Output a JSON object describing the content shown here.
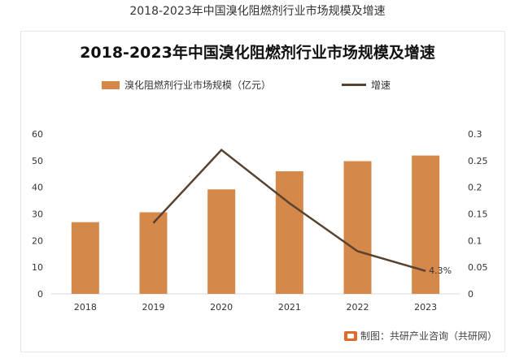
{
  "page_caption": "2018-2023年中国溴化阻燃剂行业市场规模及增速",
  "source_text": "制图：共研产业咨询（共研网）",
  "colors": {
    "bar": "#d4884a",
    "line": "#5a4230",
    "axis": "#d9d9d9"
  },
  "chart_data": {
    "type": "bar",
    "title": "2018-2023年中国溴化阻燃剂行业市场规模及增速",
    "categories": [
      "2018",
      "2019",
      "2020",
      "2021",
      "2022",
      "2023"
    ],
    "series": [
      {
        "name": "溴化阻燃剂行业市场规模（亿元）",
        "type": "bar",
        "axis": "left",
        "values": [
          26.9,
          30.6,
          39.2,
          46.0,
          49.8,
          51.9
        ]
      },
      {
        "name": "增速",
        "type": "line",
        "axis": "right",
        "values": [
          null,
          0.133,
          0.27,
          0.17,
          0.08,
          0.043
        ]
      }
    ],
    "y_left": {
      "min": 0,
      "max": 60,
      "ticks": [
        "0",
        "10",
        "20",
        "30",
        "40",
        "50",
        "60"
      ]
    },
    "y_right": {
      "min": 0,
      "max": 0.3,
      "ticks": [
        "0",
        "0.05",
        "0.1",
        "0.15",
        "0.2",
        "0.25",
        "0.3"
      ]
    },
    "annotations": [
      {
        "label": "4.3%",
        "category": "2023",
        "series": "增速"
      }
    ],
    "legend_position": "top",
    "grid": false
  }
}
